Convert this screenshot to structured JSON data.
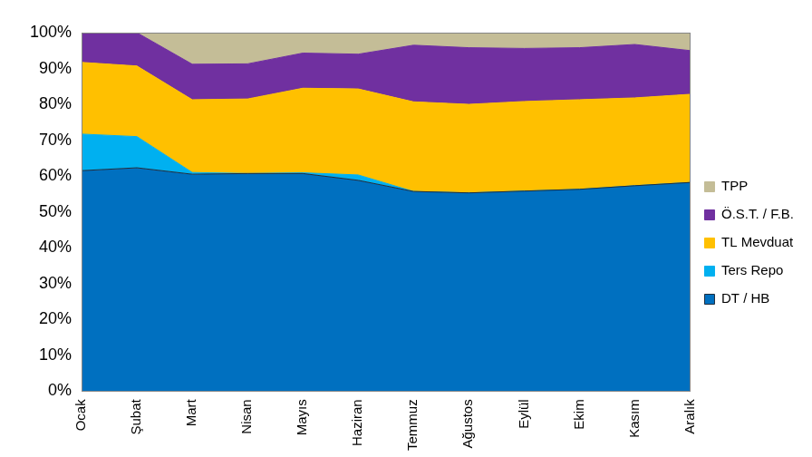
{
  "chart_data": {
    "type": "area",
    "stacked": true,
    "grid": false,
    "legend": "right",
    "categories": [
      "Ocak",
      "Şubat",
      "Mart",
      "Nisan",
      "Mayıs",
      "Haziran",
      "Temmuz",
      "Ağustos",
      "Eylül",
      "Ekim",
      "Kasım",
      "Aralık"
    ],
    "ylim": [
      0,
      100
    ],
    "yticks": [
      {
        "value": 0,
        "label": "0%"
      },
      {
        "value": 10,
        "label": "10%"
      },
      {
        "value": 20,
        "label": "20%"
      },
      {
        "value": 30,
        "label": "30%"
      },
      {
        "value": 40,
        "label": "40%"
      },
      {
        "value": 50,
        "label": "50%"
      },
      {
        "value": 60,
        "label": "60%"
      },
      {
        "value": 70,
        "label": "70%"
      },
      {
        "value": 80,
        "label": "80%"
      },
      {
        "value": 90,
        "label": "90%"
      },
      {
        "value": 100,
        "label": "100%"
      }
    ],
    "series": [
      {
        "name": "DT / HB",
        "color": "#0070c0",
        "values": [
          61.5,
          62.3,
          60.5,
          60.7,
          60.7,
          58.8,
          55.7,
          55.3,
          55.8,
          56.3,
          57.3,
          58.2
        ]
      },
      {
        "name": "Ters Repo",
        "color": "#00b0f0",
        "values": [
          10.2,
          8.7,
          0.5,
          0,
          0.2,
          1.5,
          0,
          0,
          0,
          0,
          0,
          0
        ]
      },
      {
        "name": "TL Mevduat",
        "color": "#ffc000",
        "values": [
          20.0,
          19.7,
          20.3,
          20.8,
          23.6,
          24.0,
          25.0,
          24.7,
          25.0,
          25.0,
          24.5,
          24.6
        ]
      },
      {
        "name": "Ö.S.T. / F.B.",
        "color": "#7030a0",
        "values": [
          8.3,
          9.3,
          9.9,
          9.8,
          9.8,
          9.7,
          15.8,
          15.8,
          14.8,
          14.5,
          14.9,
          12.2
        ]
      },
      {
        "name": "TPP",
        "color": "#c4bd97",
        "values": [
          0,
          0,
          8.8,
          8.7,
          5.7,
          6.0,
          3.5,
          4.2,
          4.4,
          4.2,
          3.3,
          5.0
        ]
      }
    ]
  }
}
